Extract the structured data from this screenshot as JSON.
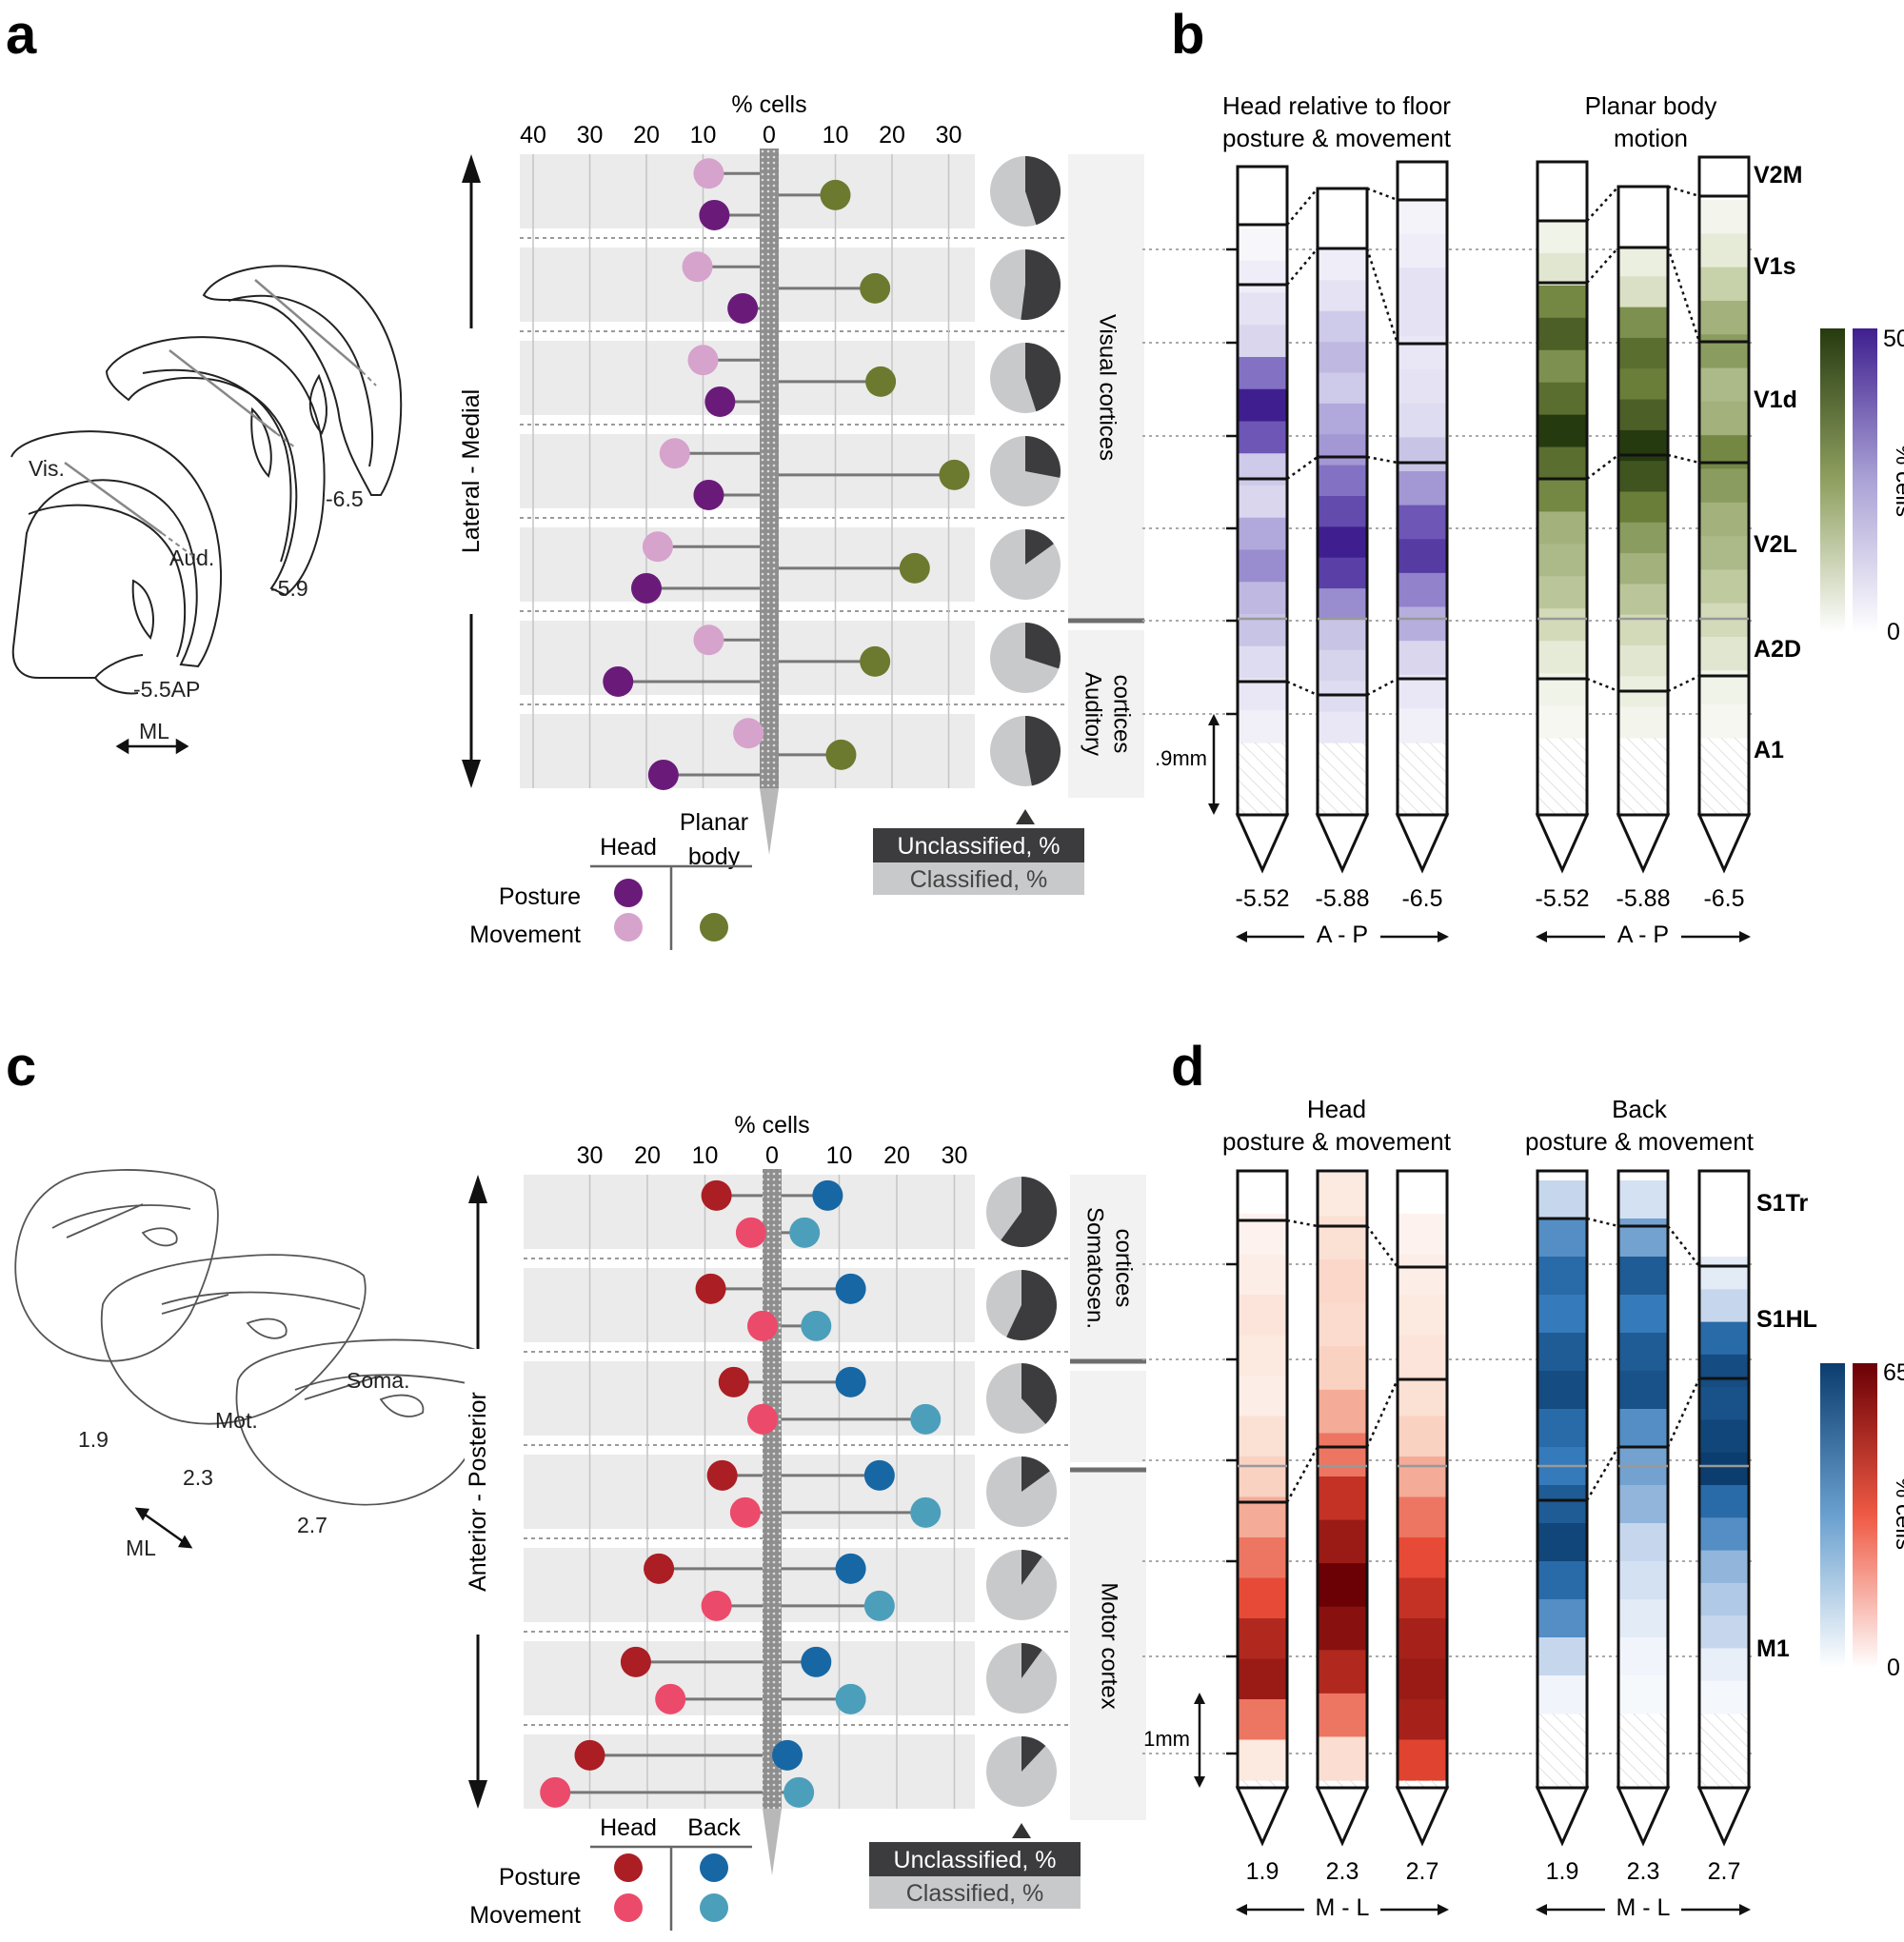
{
  "panel_a": {
    "letter": "a",
    "axis_title": "% cells",
    "ticks_left": [
      "40",
      "30",
      "20",
      "10",
      "0"
    ],
    "ticks_right": [
      "10",
      "20",
      "30"
    ],
    "vertical_axis_label": "Lateral - Medial",
    "region_labels": [
      "Visual cortices",
      "Auditory cortices"
    ],
    "legend": {
      "col1": "Head",
      "col2": "Planar body",
      "row1": "Posture",
      "row2": "Movement"
    },
    "pie_legend": {
      "dark": "Unclassified, %",
      "light": "Classified, %"
    },
    "brain_labels": [
      "Vis.",
      "Aud.",
      "-6.5",
      "-5.9",
      "-5.5AP",
      "ML"
    ]
  },
  "panel_b": {
    "letter": "b",
    "title_left": [
      "Head relative to floor",
      "posture & movement"
    ],
    "title_right": [
      "Planar body",
      "motion"
    ],
    "area_labels": [
      "V2M",
      "V1s",
      "V1d",
      "V2L",
      "A2D",
      "A1"
    ],
    "probe_labels_left": [
      "-5.52",
      "-5.88",
      "-6.5"
    ],
    "probe_labels_right": [
      "-5.52",
      "-5.88",
      "-6.5"
    ],
    "direction": "A - P",
    "scale": ".9mm",
    "colorbar": {
      "max": "50",
      "min": "0",
      "label": "% cells"
    }
  },
  "panel_c": {
    "letter": "c",
    "axis_title": "% cells",
    "ticks_left": [
      "30",
      "20",
      "10",
      "0"
    ],
    "ticks_right": [
      "10",
      "20",
      "30"
    ],
    "vertical_axis_label": "Anterior - Posterior",
    "region_labels": [
      "Somatosen. cortices",
      "Motor cortex"
    ],
    "legend": {
      "col1": "Head",
      "col2": "Back",
      "row1": "Posture",
      "row2": "Movement"
    },
    "pie_legend": {
      "dark": "Unclassified, %",
      "light": "Classified, %"
    },
    "brain_labels": [
      "1.9",
      "2.3",
      "2.7",
      "Mot.",
      "Soma.",
      "ML"
    ]
  },
  "panel_d": {
    "letter": "d",
    "title_left": [
      "Head",
      "posture & movement"
    ],
    "title_right": [
      "Back",
      "posture & movement"
    ],
    "area_labels": [
      "S1Tr",
      "S1HL",
      "M1"
    ],
    "probe_labels_left": [
      "1.9",
      "2.3",
      "2.7"
    ],
    "probe_labels_right": [
      "1.9",
      "2.3",
      "2.7"
    ],
    "direction": "M - L",
    "scale": "1mm",
    "colorbar": {
      "max": "65",
      "min": "0",
      "label": "% cells"
    }
  },
  "colors": {
    "head_posture_a": "#6a1b7a",
    "head_movement_a": "#d6a3cc",
    "body_a": "#6b7a2e",
    "head_posture_c": "#ab1e24",
    "head_movement_c": "#ec4a6a",
    "back_posture_c": "#1767a5",
    "back_movement_c": "#4c9fbb",
    "pie_dark": "#3c3c3e",
    "pie_light": "#c8c9cb",
    "band": "#ebebeb"
  },
  "chart_data": [
    {
      "type": "scatter",
      "panel": "a",
      "xlabel": "% cells",
      "rows": 7,
      "series": [
        {
          "name": "Head Posture",
          "values": [
            8,
            3,
            7,
            9,
            20,
            25,
            17
          ]
        },
        {
          "name": "Head Movement",
          "values": [
            9,
            11,
            10,
            15,
            18,
            9,
            2
          ]
        },
        {
          "name": "Planar body Movement",
          "values": [
            10,
            17,
            18,
            31,
            24,
            17,
            11
          ]
        }
      ],
      "unclassified_fraction": [
        0.45,
        0.52,
        0.45,
        0.28,
        0.15,
        0.3,
        0.47
      ]
    },
    {
      "type": "scatter",
      "panel": "c",
      "xlabel": "% cells",
      "rows": 7,
      "series": [
        {
          "name": "Head Posture",
          "values": [
            8,
            9,
            5,
            7,
            18,
            22,
            30
          ]
        },
        {
          "name": "Head Movement",
          "values": [
            2,
            0,
            0,
            3,
            8,
            16,
            36
          ]
        },
        {
          "name": "Back Posture",
          "values": [
            8,
            12,
            12,
            17,
            12,
            6,
            1
          ]
        },
        {
          "name": "Back Movement",
          "values": [
            4,
            6,
            25,
            25,
            17,
            12,
            3
          ]
        }
      ],
      "unclassified_fraction": [
        0.6,
        0.57,
        0.38,
        0.15,
        0.1,
        0.1,
        0.12
      ]
    },
    {
      "type": "heatmap",
      "panel": "b-left",
      "probes": [
        "-5.52",
        "-5.88",
        "-6.5"
      ],
      "profiles": [
        [
          3,
          6,
          10,
          14,
          35,
          50,
          40,
          18,
          14,
          25,
          30,
          22,
          20,
          12,
          8,
          5
        ],
        [
          6,
          10,
          18,
          22,
          18,
          25,
          28,
          35,
          42,
          50,
          44,
          30,
          20,
          15,
          12,
          8
        ],
        [
          4,
          6,
          10,
          10,
          8,
          10,
          12,
          20,
          28,
          40,
          45,
          32,
          24,
          14,
          8,
          5
        ]
      ]
    },
    {
      "type": "heatmap",
      "panel": "b-right",
      "probes": [
        "-5.52",
        "-5.88",
        "-6.5"
      ],
      "profiles": [
        [
          6,
          12,
          40,
          48,
          38,
          45,
          55,
          45,
          40,
          30,
          28,
          25,
          18,
          10,
          6,
          4
        ],
        [
          8,
          15,
          38,
          45,
          42,
          48,
          55,
          50,
          42,
          35,
          30,
          25,
          18,
          12,
          8,
          5
        ],
        [
          5,
          10,
          22,
          30,
          35,
          28,
          30,
          40,
          35,
          30,
          28,
          24,
          18,
          12,
          6,
          4
        ]
      ]
    },
    {
      "type": "heatmap",
      "panel": "d-left",
      "probes": [
        "1.9",
        "2.3",
        "2.7"
      ],
      "profiles": [
        [
          6,
          8,
          12,
          10,
          8,
          14,
          20,
          30,
          40,
          48,
          58,
          62,
          40,
          10
        ],
        [
          10,
          14,
          18,
          16,
          20,
          30,
          40,
          55,
          62,
          70,
          65,
          58,
          40,
          15
        ],
        [
          6,
          8,
          10,
          12,
          14,
          20,
          30,
          40,
          48,
          55,
          60,
          62,
          60,
          50
        ]
      ]
    },
    {
      "type": "heatmap",
      "panel": "d-right",
      "probes": [
        "1.9",
        "2.3",
        "2.7"
      ],
      "profiles": [
        [
          20,
          40,
          50,
          45,
          55,
          60,
          50,
          45,
          55,
          62,
          50,
          40,
          20,
          5
        ],
        [
          15,
          35,
          55,
          45,
          55,
          58,
          40,
          35,
          30,
          20,
          15,
          10,
          5,
          3
        ],
        [
          10,
          20,
          50,
          60,
          58,
          62,
          65,
          50,
          40,
          30,
          25,
          20,
          8,
          4
        ]
      ]
    }
  ]
}
